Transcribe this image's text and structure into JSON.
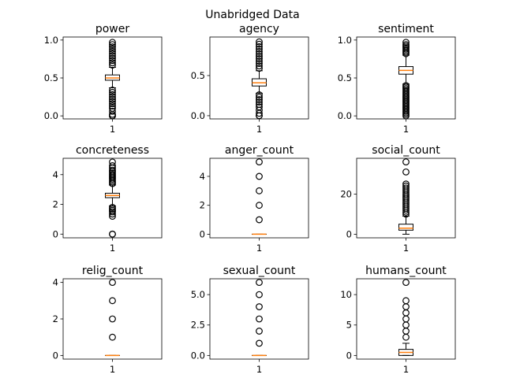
{
  "suptitle": "Unabridged Data",
  "chart_data": [
    {
      "type": "boxplot",
      "title": "power",
      "x_tick_labels": [
        "1"
      ],
      "ylim": [
        -0.04,
        1.04
      ],
      "y_ticks": [
        0.0,
        0.5,
        1.0
      ],
      "y_tick_labels": [
        "0.0",
        "0.5",
        "1.0"
      ],
      "whisker_low": 0.37,
      "q1": 0.47,
      "median": 0.5,
      "q3": 0.54,
      "whisker_high": 0.64,
      "fliers": [
        0.0,
        0.0,
        0.02,
        0.06,
        0.1,
        0.13,
        0.16,
        0.19,
        0.22,
        0.25,
        0.28,
        0.31,
        0.34,
        0.67,
        0.7,
        0.73,
        0.76,
        0.79,
        0.82,
        0.85,
        0.88,
        0.91,
        0.94,
        0.97
      ]
    },
    {
      "type": "boxplot",
      "title": "agency",
      "x_tick_labels": [
        "1"
      ],
      "ylim": [
        -0.04,
        0.98
      ],
      "y_ticks": [
        0.0,
        0.5
      ],
      "y_tick_labels": [
        "0.0",
        "0.5"
      ],
      "whisker_low": 0.28,
      "q1": 0.37,
      "median": 0.41,
      "q3": 0.46,
      "whisker_high": 0.56,
      "fliers": [
        0.0,
        0.0,
        0.03,
        0.07,
        0.11,
        0.14,
        0.17,
        0.2,
        0.23,
        0.26,
        0.59,
        0.62,
        0.65,
        0.68,
        0.71,
        0.74,
        0.77,
        0.8,
        0.83,
        0.86,
        0.89,
        0.92
      ]
    },
    {
      "type": "boxplot",
      "title": "sentiment",
      "x_tick_labels": [
        "1"
      ],
      "ylim": [
        -0.04,
        1.04
      ],
      "y_ticks": [
        0.0,
        0.5,
        1.0
      ],
      "y_tick_labels": [
        "0.0",
        "0.5",
        "1.0"
      ],
      "whisker_low": 0.42,
      "q1": 0.55,
      "median": 0.6,
      "q3": 0.65,
      "whisker_high": 0.8,
      "fliers": [
        0.0,
        0.02,
        0.04,
        0.06,
        0.08,
        0.1,
        0.12,
        0.14,
        0.16,
        0.18,
        0.2,
        0.22,
        0.24,
        0.26,
        0.28,
        0.3,
        0.32,
        0.34,
        0.36,
        0.38,
        0.4,
        0.82,
        0.84,
        0.86,
        0.88,
        0.9,
        0.92,
        0.94,
        0.97
      ]
    },
    {
      "type": "boxplot",
      "title": "concreteness",
      "x_tick_labels": [
        "1"
      ],
      "ylim": [
        -0.25,
        5.1
      ],
      "y_ticks": [
        0,
        2,
        4
      ],
      "y_tick_labels": [
        "0",
        "2",
        "4"
      ],
      "whisker_low": 1.9,
      "q1": 2.45,
      "median": 2.6,
      "q3": 2.75,
      "whisker_high": 3.3,
      "fliers": [
        0.0,
        0.0,
        1.2,
        1.35,
        1.5,
        1.6,
        1.7,
        1.8,
        3.4,
        3.5,
        3.6,
        3.7,
        3.8,
        3.9,
        4.0,
        4.1,
        4.2,
        4.3,
        4.45,
        4.6,
        4.85
      ]
    },
    {
      "type": "boxplot",
      "title": "anger_count",
      "x_tick_labels": [
        "1"
      ],
      "ylim": [
        -0.25,
        5.25
      ],
      "y_ticks": [
        0,
        2,
        4
      ],
      "y_tick_labels": [
        "0",
        "2",
        "4"
      ],
      "whisker_low": 0,
      "q1": 0,
      "median": 0,
      "q3": 0,
      "whisker_high": 0,
      "fliers": [
        1,
        2,
        3,
        4,
        5
      ]
    },
    {
      "type": "boxplot",
      "title": "social_count",
      "x_tick_labels": [
        "1"
      ],
      "ylim": [
        -1.8,
        37.8
      ],
      "y_ticks": [
        0,
        20
      ],
      "y_tick_labels": [
        "0",
        "20"
      ],
      "whisker_low": 0,
      "q1": 2,
      "median": 3,
      "q3": 5,
      "whisker_high": 9,
      "fliers": [
        10,
        11,
        12,
        13,
        14,
        15,
        16,
        17,
        18,
        19,
        20,
        21,
        22,
        23,
        24,
        25,
        31,
        36
      ]
    },
    {
      "type": "boxplot",
      "title": "relig_count",
      "x_tick_labels": [
        "1"
      ],
      "ylim": [
        -0.2,
        4.2
      ],
      "y_ticks": [
        0,
        2,
        4
      ],
      "y_tick_labels": [
        "0",
        "2",
        "4"
      ],
      "whisker_low": 0,
      "q1": 0,
      "median": 0,
      "q3": 0,
      "whisker_high": 0,
      "fliers": [
        1,
        2,
        3,
        4
      ]
    },
    {
      "type": "boxplot",
      "title": "sexual_count",
      "x_tick_labels": [
        "1"
      ],
      "ylim": [
        -0.3,
        6.3
      ],
      "y_ticks": [
        0.0,
        2.5,
        5.0
      ],
      "y_tick_labels": [
        "0.0",
        "2.5",
        "5.0"
      ],
      "whisker_low": 0,
      "q1": 0,
      "median": 0,
      "q3": 0,
      "whisker_high": 0,
      "fliers": [
        1,
        2,
        3,
        4,
        5,
        6
      ]
    },
    {
      "type": "boxplot",
      "title": "humans_count",
      "x_tick_labels": [
        "1"
      ],
      "ylim": [
        -0.6,
        12.6
      ],
      "y_ticks": [
        0,
        5,
        10
      ],
      "y_tick_labels": [
        "0",
        "5",
        "10"
      ],
      "whisker_low": 0,
      "q1": 0,
      "median": 0.5,
      "q3": 1,
      "whisker_high": 2,
      "fliers": [
        3,
        4,
        5,
        6,
        7,
        8,
        9,
        12
      ]
    }
  ]
}
